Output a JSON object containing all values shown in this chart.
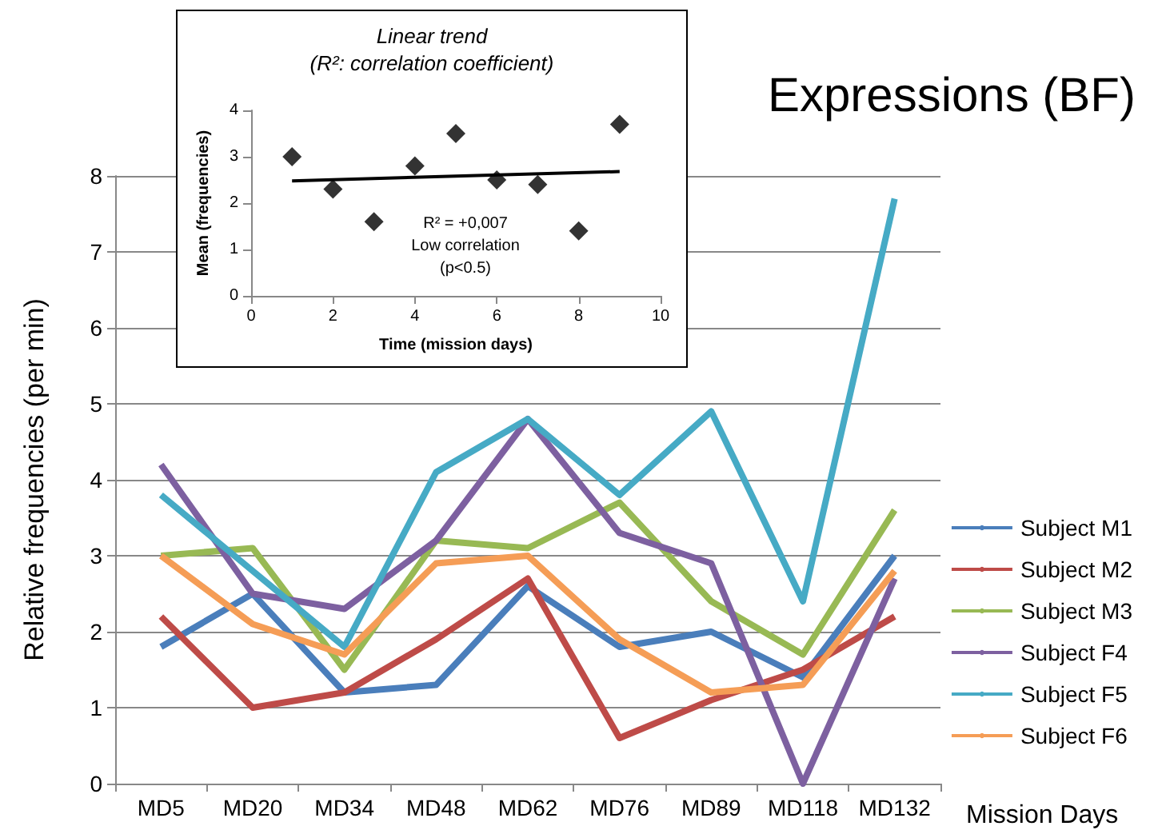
{
  "chart_data": [
    {
      "type": "line",
      "title": "Expressions (BF)",
      "xlabel": "Mission Days",
      "ylabel": "Relative frequencies (per min)",
      "categories": [
        "MD5",
        "MD20",
        "MD34",
        "MD48",
        "MD62",
        "MD76",
        "MD89",
        "MD118",
        "MD132"
      ],
      "series": [
        {
          "name": "Subject M1",
          "color": "#4a7ebb",
          "values": [
            1.8,
            2.5,
            1.2,
            1.3,
            2.6,
            1.8,
            2.0,
            1.4,
            3.0
          ]
        },
        {
          "name": "Subject M2",
          "color": "#be4b48",
          "values": [
            2.2,
            1.0,
            1.2,
            1.9,
            2.7,
            0.6,
            1.1,
            1.5,
            2.2
          ]
        },
        {
          "name": "Subject M3",
          "color": "#98b954",
          "values": [
            3.0,
            3.1,
            1.5,
            3.2,
            3.1,
            3.7,
            2.4,
            1.7,
            3.6
          ]
        },
        {
          "name": "Subject F4",
          "color": "#7d60a0",
          "values": [
            4.2,
            2.5,
            2.3,
            3.2,
            4.8,
            3.3,
            2.9,
            0.0,
            2.7
          ]
        },
        {
          "name": "Subject F5",
          "color": "#46aac5",
          "values": [
            3.8,
            2.8,
            1.8,
            4.1,
            4.8,
            3.8,
            4.9,
            2.4,
            7.7
          ]
        },
        {
          "name": "Subject F6",
          "color": "#f59d56",
          "values": [
            3.0,
            2.1,
            1.7,
            2.9,
            3.0,
            1.9,
            1.2,
            1.3,
            2.8
          ]
        }
      ],
      "ylim": [
        0,
        8
      ],
      "yticks": [
        0,
        1,
        2,
        3,
        4,
        5,
        6,
        7,
        8
      ],
      "grid": "y",
      "legend": "right",
      "marker": "none",
      "line_style": "solid"
    },
    {
      "type": "scatter",
      "title": "Linear trend",
      "subtitle": "(R²: correlation coefficient)",
      "xlabel": "Time (mission days)",
      "ylabel": "Mean (frequencies)",
      "series": [
        {
          "type": "scatter",
          "color": "#000000",
          "x": [
            1,
            2,
            3,
            4,
            5,
            6,
            7,
            8,
            9
          ],
          "values": [
            3.0,
            2.3,
            1.6,
            2.8,
            3.5,
            2.5,
            2.4,
            1.4,
            3.7
          ]
        },
        {
          "type": "line",
          "color": "#000000",
          "x": [
            1,
            9
          ],
          "values": [
            2.48,
            2.68
          ],
          "marker": "none"
        }
      ],
      "xlim": [
        0,
        10
      ],
      "xticks": [
        0,
        2,
        4,
        6,
        8,
        10
      ],
      "ylim": [
        0,
        4
      ],
      "yticks": [
        0,
        1,
        2,
        3,
        4
      ],
      "grid": false,
      "legend": false,
      "marker": "diamond",
      "annotations": [
        "R² = +0,007",
        "Low correlation",
        "(p<0.5)"
      ]
    }
  ]
}
